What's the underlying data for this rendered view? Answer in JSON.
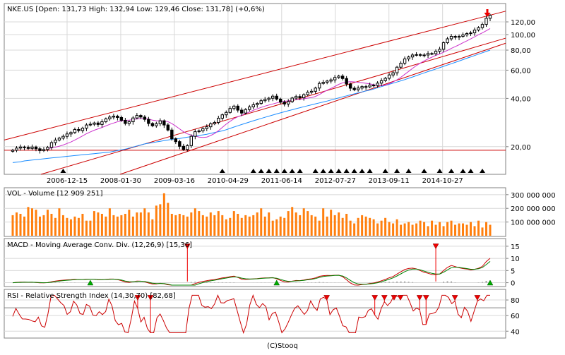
{
  "footer": "(C)Stooq",
  "chart_data": [
    {
      "id": "price",
      "type": "candlestick",
      "ticker": "NKE.US",
      "header": "NKE.US [Open: 131,73  High: 132,94  Low: 129,46  Close: 131,78] (+0,6%)",
      "scale": "log",
      "ylim": [
        14,
        150
      ],
      "yticks": [
        {
          "value": 20,
          "label": "20,00"
        },
        {
          "value": 40,
          "label": "40,00"
        },
        {
          "value": 60,
          "label": "60,00"
        },
        {
          "value": 80,
          "label": "80,00"
        },
        {
          "value": 100,
          "label": "100,00"
        },
        {
          "value": 120,
          "label": "120,00"
        }
      ],
      "xlabels": [
        "2006-12-15",
        "2008-01-30",
        "2009-03-16",
        "2010-04-29",
        "2011-06-14",
        "2012-07-27",
        "2013-09-11",
        "2014-10-27"
      ],
      "support_level": 19.0,
      "last_close": 131.78,
      "closes": [
        19.0,
        19.6,
        19.9,
        19.8,
        19.5,
        19.9,
        19.4,
        18.9,
        19.2,
        19.8,
        21.2,
        22.0,
        22.6,
        23.2,
        24.0,
        24.5,
        25.6,
        25.2,
        26.1,
        27.3,
        27.6,
        28.1,
        27.5,
        28.6,
        29.8,
        30.6,
        31.0,
        30.4,
        29.2,
        27.9,
        28.6,
        30.2,
        31.3,
        30.6,
        29.6,
        27.9,
        27.0,
        27.8,
        29.0,
        27.3,
        25.4,
        22.4,
        21.5,
        20.1,
        19.2,
        20.3,
        23.2,
        24.8,
        25.1,
        25.9,
        26.6,
        27.8,
        28.3,
        30.1,
        31.6,
        32.7,
        34.6,
        35.8,
        33.8,
        32.4,
        34.1,
        35.4,
        36.5,
        37.2,
        38.7,
        39.4,
        40.1,
        41.3,
        39.6,
        37.9,
        36.9,
        38.2,
        40.2,
        41.1,
        40.4,
        42.2,
        43.7,
        44.3,
        46.4,
        49.6,
        50.4,
        51.3,
        52.2,
        54.0,
        55.1,
        53.2,
        49.2,
        46.3,
        45.3,
        46.4,
        47.4,
        47.2,
        48.4,
        48.2,
        49.8,
        51.6,
        53.4,
        56.0,
        57.8,
        62.6,
        66.3,
        70.5,
        72.5,
        74.6,
        75.0,
        74.6,
        74.6,
        76.2,
        76.0,
        78.7,
        81.0,
        89.0,
        94.1,
        97.5,
        96.2,
        97.5,
        99.5,
        101.5,
        102.5,
        106.7,
        110.5,
        115.7,
        126.4,
        131.8
      ],
      "ma_short": [
        null,
        null,
        null,
        null,
        null,
        null,
        null,
        null,
        null,
        19.46,
        19.63,
        19.87,
        20.14,
        20.48,
        20.93,
        21.39,
        22.01,
        22.64,
        23.33,
        24.08,
        24.72,
        25.33,
        25.82,
        26.36,
        26.94,
        27.55,
        28.09,
        28.61,
        28.92,
        29.18,
        29.28,
        29.49,
        29.78,
        29.98,
        29.96,
        29.69,
        29.29,
        29.03,
        29.01,
        28.95,
        28.63,
        27.85,
        26.87,
        25.82,
        24.78,
        24.02,
        23.64,
        23.34,
        22.95,
        22.81,
        22.93,
        23.47,
        24.15,
        25.15,
        26.39,
        27.63,
        28.77,
        29.87,
        30.74,
        31.39,
        32.14,
        32.9,
        33.72,
        34.43,
        35.14,
        35.81,
        36.36,
        36.91,
        37.49,
        38.04,
        38.32,
        38.6,
        38.97,
        39.36,
        39.53,
        39.81,
        40.17,
        40.47,
        41.15,
        42.32,
        43.7,
        45.01,
        46.21,
        47.5,
        48.97,
        50.07,
        50.62,
        50.82,
        50.71,
        50.39,
        50.09,
        49.68,
        49.3,
        48.72,
        48.19,
        48.03,
        48.45,
        49.42,
        50.67,
        52.29,
        54.18,
        56.51,
        58.92,
        61.56,
        64.08,
        66.38,
        68.5,
        70.52,
        72.34,
        74.23,
        75.67,
        77.52,
        79.68,
        81.97,
        84.09,
        86.38,
        88.87,
        91.4,
        94.05,
        96.82,
        99.77,
        102.44,
        105.67,
        109.1
      ],
      "ma_long": [
        15.9,
        16.0,
        16.1,
        16.3,
        16.4,
        16.5,
        16.6,
        16.7,
        16.8,
        16.9,
        17.0,
        17.1,
        17.2,
        17.3,
        17.4,
        17.5,
        17.6,
        17.7,
        17.8,
        17.9,
        18.0,
        18.1,
        18.2,
        18.3,
        18.4,
        18.5,
        18.7,
        18.9,
        19.1,
        19.3,
        19.6,
        19.9,
        20.2,
        20.5,
        20.8,
        21.0,
        21.2,
        21.4,
        21.6,
        21.8,
        22.0,
        22.2,
        22.4,
        22.5,
        22.7,
        22.9,
        23.1,
        23.3,
        23.5,
        23.7,
        23.9,
        24.2,
        24.5,
        24.8,
        25.1,
        25.5,
        26.0,
        26.5,
        27.0,
        27.5,
        28.0,
        28.5,
        29.0,
        29.5,
        30.0,
        30.5,
        31.0,
        31.5,
        32.0,
        32.5,
        33.0,
        33.5,
        34.0,
        34.5,
        35.0,
        35.5,
        36.0,
        36.5,
        37.0,
        37.5,
        38.0,
        38.5,
        39.1,
        39.7,
        40.3,
        40.9,
        41.5,
        42.1,
        42.7,
        43.3,
        43.9,
        44.5,
        45.1,
        45.8,
        46.6,
        47.4,
        48.2,
        49.0,
        49.8,
        50.6,
        51.5,
        52.4,
        53.4,
        54.4,
        55.5,
        56.6,
        57.7,
        58.8,
        59.9,
        61.0,
        62.2,
        63.4,
        64.6,
        65.8,
        67.1,
        68.4,
        69.8,
        71.2,
        72.6,
        74.0,
        75.5,
        77.0,
        78.5,
        80.0
      ],
      "channel": {
        "upper_start": 22.0,
        "upper_end": 140.0,
        "lower_start": 13.5,
        "lower_end": 95.0,
        "lower2_start": 13.0,
        "lower2_end": 38.0
      },
      "signal_markers_index": [
        13,
        54,
        62,
        64,
        66,
        68,
        70,
        72,
        74,
        78,
        80,
        82,
        84,
        86,
        88,
        90,
        92,
        96,
        99,
        102,
        106,
        110,
        113,
        116,
        118,
        121
      ]
    },
    {
      "id": "volume",
      "type": "bar",
      "title": "VOL - Volume [12 909 251]",
      "ylim": [
        0,
        330000000
      ],
      "yticks": [
        {
          "value": 100000000,
          "label": "100 000 000"
        },
        {
          "value": 200000000,
          "label": "200 000 000"
        },
        {
          "value": 300000000,
          "label": "300 000 000"
        }
      ],
      "values": [
        150000000,
        170000000,
        160000000,
        140000000,
        210000000,
        200000000,
        190000000,
        140000000,
        150000000,
        190000000,
        160000000,
        130000000,
        200000000,
        150000000,
        130000000,
        120000000,
        140000000,
        130000000,
        160000000,
        110000000,
        110000000,
        180000000,
        170000000,
        160000000,
        140000000,
        200000000,
        150000000,
        140000000,
        150000000,
        160000000,
        190000000,
        140000000,
        170000000,
        170000000,
        200000000,
        170000000,
        120000000,
        220000000,
        230000000,
        310000000,
        240000000,
        160000000,
        150000000,
        160000000,
        150000000,
        140000000,
        170000000,
        200000000,
        180000000,
        150000000,
        140000000,
        170000000,
        150000000,
        180000000,
        150000000,
        120000000,
        130000000,
        180000000,
        160000000,
        130000000,
        150000000,
        140000000,
        150000000,
        170000000,
        200000000,
        140000000,
        170000000,
        110000000,
        120000000,
        140000000,
        130000000,
        180000000,
        210000000,
        170000000,
        150000000,
        200000000,
        180000000,
        150000000,
        140000000,
        110000000,
        200000000,
        140000000,
        190000000,
        150000000,
        170000000,
        130000000,
        160000000,
        110000000,
        90000000,
        130000000,
        150000000,
        140000000,
        130000000,
        120000000,
        90000000,
        110000000,
        130000000,
        100000000,
        90000000,
        120000000,
        80000000,
        90000000,
        100000000,
        80000000,
        90000000,
        110000000,
        100000000,
        70000000,
        110000000,
        80000000,
        100000000,
        70000000,
        100000000,
        110000000,
        80000000,
        90000000,
        90000000,
        80000000,
        100000000,
        70000000,
        110000000,
        60000000,
        100000000,
        80000000
      ],
      "last_value": 12909251
    },
    {
      "id": "macd",
      "type": "line",
      "title": "MACD - Moving Average Conv. Div. (12,26,9) [15,36]",
      "ylim": [
        -1,
        17
      ],
      "yticks": [
        {
          "value": 0,
          "label": "0"
        },
        {
          "value": 5,
          "label": "5"
        },
        {
          "value": 10,
          "label": "10"
        },
        {
          "value": 15,
          "label": "15"
        }
      ],
      "series": [
        {
          "color": "#cc0000"
        },
        {
          "color": "#008000"
        }
      ],
      "up_markers_index": [
        20,
        70,
        126
      ],
      "down_markers_index": [
        46,
        112
      ],
      "flat_at_index": [
        [
          46,
          6
        ],
        [
          112,
          7
        ]
      ],
      "last_value": 15.36
    },
    {
      "id": "rsi",
      "type": "line",
      "title": "RSI - Relative Strength Index (14,30,70) [82,68]",
      "ylim": [
        33,
        90
      ],
      "yticks": [
        {
          "value": 40,
          "label": "40"
        },
        {
          "value": 60,
          "label": "60"
        },
        {
          "value": 80,
          "label": "80"
        }
      ],
      "thresholds": [
        70
      ],
      "down_markers_index": [
        39,
        43,
        98,
        113,
        116,
        119,
        121,
        127,
        129,
        138,
        145
      ],
      "last_value": 82.68
    }
  ],
  "colors": {
    "candle_up": "#ffffff",
    "candle_down": "#000000",
    "channel": "#cc0000",
    "ma_short": "#cc33cc",
    "ma_long": "#1a8cff",
    "volume_bar": "#ff7f0e",
    "rsi_line": "#cc0000",
    "threshold": "#808080",
    "marker_down": "#ee0000",
    "marker_up": "#00aa00"
  }
}
